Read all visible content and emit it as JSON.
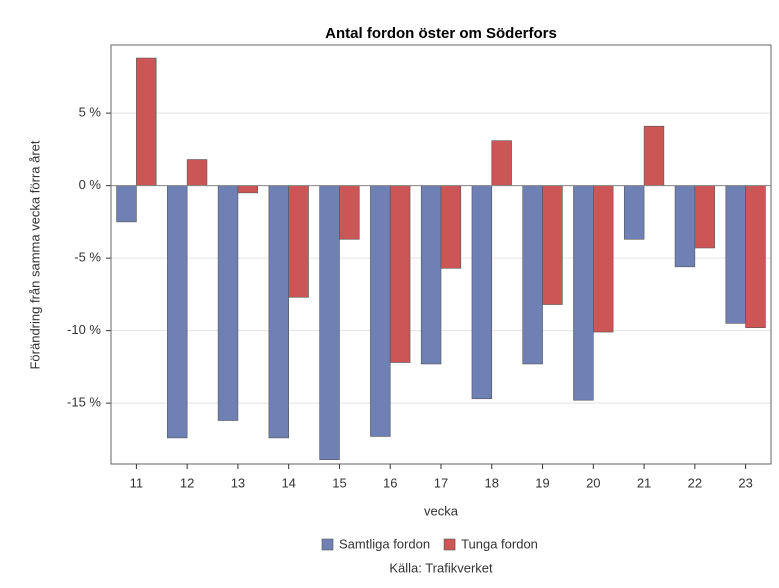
{
  "chart_data": {
    "type": "bar",
    "title": "Antal fordon öster om Söderfors",
    "x_label": "vecka",
    "y_label": "Förändring från samma vecka förra året",
    "source": "Källa: Trafikverket",
    "categories": [
      "11",
      "12",
      "13",
      "14",
      "15",
      "16",
      "17",
      "18",
      "19",
      "20",
      "21",
      "22",
      "23"
    ],
    "series": [
      {
        "name": "Samtliga fordon",
        "color": "#6f80b5",
        "values": [
          -2.5,
          -17.4,
          -16.2,
          -17.4,
          -18.9,
          -17.3,
          -12.3,
          -14.7,
          -12.3,
          -14.8,
          -3.7,
          -5.6,
          -9.5
        ]
      },
      {
        "name": "Tunga fordon",
        "color": "#cc5555",
        "values": [
          8.8,
          1.8,
          -0.5,
          -7.7,
          -3.7,
          -12.2,
          -5.7,
          3.1,
          -8.2,
          -10.1,
          4.1,
          -4.3,
          -9.8
        ]
      }
    ],
    "ylim": [
      -19.2,
      9.7
    ],
    "yticks": [
      {
        "value": -15,
        "label": "-15 %"
      },
      {
        "value": -10,
        "label": "-10 %"
      },
      {
        "value": -5,
        "label": "-5 %"
      },
      {
        "value": 0,
        "label": "0 %"
      },
      {
        "value": 5,
        "label": "5 %"
      }
    ],
    "grid": true,
    "legend": "bottom"
  }
}
